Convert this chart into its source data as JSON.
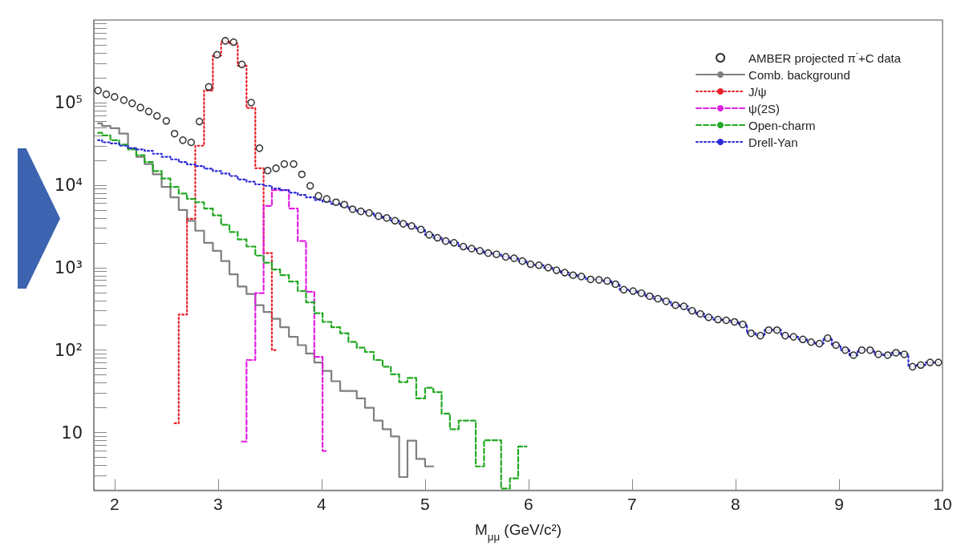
{
  "chart_data": {
    "type": "step",
    "xlabel": "M$_{μμ}$ (GeV/c²)",
    "xlim": [
      1.8,
      10
    ],
    "xticks": [
      2,
      3,
      4,
      5,
      6,
      7,
      8,
      9,
      10
    ],
    "ylim": [
      2,
      1000000
    ],
    "yticks": [
      {
        "value": 3,
        "label": null
      },
      {
        "value": 4,
        "label": null
      },
      {
        "value": 5,
        "label": null
      },
      {
        "value": 6,
        "label": null
      },
      {
        "value": 7,
        "label": null
      },
      {
        "value": 8,
        "label": null
      },
      {
        "value": 9,
        "label": null
      },
      {
        "value": 10,
        "label": "10"
      },
      {
        "value": 20,
        "label": null
      },
      {
        "value": 30,
        "label": null
      },
      {
        "value": 40,
        "label": null
      },
      {
        "value": 50,
        "label": null
      },
      {
        "value": 60,
        "label": null
      },
      {
        "value": 70,
        "label": null
      },
      {
        "value": 80,
        "label": null
      },
      {
        "value": 90,
        "label": null
      },
      {
        "value": 100,
        "label": "10²"
      },
      {
        "value": 200,
        "label": null
      },
      {
        "value": 300,
        "label": null
      },
      {
        "value": 400,
        "label": null
      },
      {
        "value": 500,
        "label": null
      },
      {
        "value": 600,
        "label": null
      },
      {
        "value": 700,
        "label": null
      },
      {
        "value": 800,
        "label": null
      },
      {
        "value": 900,
        "label": null
      },
      {
        "value": 1000,
        "label": "10³"
      },
      {
        "value": 2000,
        "label": null
      },
      {
        "value": 3000,
        "label": null
      },
      {
        "value": 4000,
        "label": null
      },
      {
        "value": 5000,
        "label": null
      },
      {
        "value": 6000,
        "label": null
      },
      {
        "value": 7000,
        "label": null
      },
      {
        "value": 8000,
        "label": null
      },
      {
        "value": 9000,
        "label": null
      },
      {
        "value": 10000,
        "label": "10⁴"
      },
      {
        "value": 20000,
        "label": null
      },
      {
        "value": 30000,
        "label": null
      },
      {
        "value": 40000,
        "label": null
      },
      {
        "value": 50000,
        "label": null
      },
      {
        "value": 60000,
        "label": null
      },
      {
        "value": 70000,
        "label": null
      },
      {
        "value": 80000,
        "label": null
      },
      {
        "value": 90000,
        "label": null
      },
      {
        "value": 100000,
        "label": "10⁵"
      },
      {
        "value": 200000,
        "label": null
      },
      {
        "value": 300000,
        "label": null
      },
      {
        "value": 400000,
        "label": null
      },
      {
        "value": 500000,
        "label": null
      },
      {
        "value": 600000,
        "label": null
      },
      {
        "value": 700000,
        "label": null
      },
      {
        "value": 800000,
        "label": null
      },
      {
        "value": 900000,
        "label": null
      }
    ],
    "log": "y",
    "grid": false,
    "legend": "top right",
    "x": [
      1.84,
      1.92,
      2.0,
      2.09,
      2.17,
      2.25,
      2.33,
      2.41,
      2.5,
      2.58,
      2.66,
      2.74,
      2.82,
      2.91,
      2.99,
      3.07,
      3.15,
      3.23,
      3.32,
      3.4,
      3.48,
      3.56,
      3.64,
      3.73,
      3.81,
      3.89,
      3.97,
      4.05,
      4.14,
      4.22,
      4.3,
      4.38,
      4.46,
      4.55,
      4.63,
      4.71,
      4.79,
      4.87,
      4.96,
      5.04,
      5.12,
      5.2,
      5.28,
      5.37,
      5.45,
      5.53,
      5.61,
      5.69,
      5.78,
      5.86,
      5.94,
      6.02,
      6.1,
      6.19,
      6.27,
      6.35,
      6.43,
      6.51,
      6.6,
      6.68,
      6.76,
      6.84,
      6.92,
      7.01,
      7.09,
      7.17,
      7.25,
      7.33,
      7.42,
      7.5,
      7.58,
      7.66,
      7.74,
      7.83,
      7.91,
      7.99,
      8.07,
      8.15,
      8.24,
      8.32,
      8.4,
      8.48,
      8.56,
      8.65,
      8.73,
      8.81,
      8.89,
      8.97,
      9.06,
      9.14,
      9.22,
      9.3,
      9.38,
      9.47,
      9.55,
      9.63,
      9.71,
      9.79,
      9.88,
      9.96
    ],
    "series": [
      {
        "name": "AMBER projected π$^{-}$+C data",
        "type": "scatter",
        "marker": "circle",
        "color": "#000000",
        "values": [
          140000,
          126000,
          117000,
          107000,
          98000,
          87000,
          78000,
          69000,
          60000,
          42000,
          35000,
          33000,
          59000,
          155000,
          380000,
          560000,
          540000,
          290000,
          100000,
          28000,
          15000,
          16000,
          18000,
          18000,
          13500,
          9800,
          7400,
          6800,
          6200,
          5800,
          5100,
          4800,
          4600,
          4200,
          4000,
          3700,
          3400,
          3200,
          2900,
          2500,
          2300,
          2100,
          2000,
          1800,
          1700,
          1600,
          1500,
          1450,
          1350,
          1300,
          1200,
          1100,
          1070,
          1000,
          930,
          870,
          810,
          780,
          720,
          710,
          690,
          630,
          540,
          520,
          490,
          450,
          420,
          390,
          350,
          340,
          300,
          275,
          250,
          235,
          230,
          220,
          205,
          160,
          150,
          175,
          175,
          150,
          145,
          135,
          125,
          120,
          140,
          115,
          100,
          87,
          100,
          100,
          89,
          87,
          93,
          89,
          63,
          66,
          71,
          71
        ]
      },
      {
        "name": "Comb. background",
        "color": "#7f7f7f",
        "line_style": "solid",
        "values": [
          56000,
          52000,
          49000,
          42000,
          28000,
          22000,
          18000,
          13500,
          9500,
          7100,
          5000,
          3700,
          2800,
          2000,
          1600,
          1200,
          830,
          590,
          480,
          350,
          290,
          240,
          190,
          145,
          115,
          91,
          71,
          56,
          42,
          32,
          32,
          26,
          20,
          14,
          11,
          9,
          2.9,
          8,
          4.8,
          3.9,
          null,
          null,
          null,
          null,
          null,
          null,
          null,
          null,
          null,
          null,
          null,
          null,
          null,
          null,
          null,
          null,
          null,
          null,
          null,
          null,
          null,
          null,
          null,
          null,
          null,
          null,
          null,
          null,
          null,
          null,
          null,
          null,
          null,
          null,
          null,
          null,
          null,
          null,
          null,
          null,
          null,
          null,
          null,
          null,
          null,
          null,
          null,
          null,
          null,
          null,
          null,
          null,
          null,
          null,
          null,
          null,
          null,
          null,
          null,
          null
        ]
      },
      {
        "name": "J/ψ",
        "color": "#e8202a",
        "line_style": "dotted",
        "x": [
          2.58,
          2.66,
          2.74,
          2.82,
          2.91,
          2.99,
          3.07,
          3.15,
          3.23,
          3.32,
          3.4,
          3.48,
          3.56
        ],
        "values": [
          13,
          270,
          3900,
          30000,
          140000,
          370000,
          550000,
          520000,
          280000,
          86000,
          16000,
          1500,
          100
        ]
      },
      {
        "name": "ψ(2S)",
        "color": "#e020e0",
        "line_style": "dashed",
        "x": [
          3.23,
          3.32,
          3.4,
          3.48,
          3.56,
          3.64,
          3.73,
          3.81,
          3.89,
          3.97,
          4.05
        ],
        "values": [
          7.8,
          76,
          490,
          5600,
          8700,
          8700,
          5200,
          2100,
          510,
          83,
          6
        ]
      },
      {
        "name": "Open-charm",
        "color": "#22a822",
        "line_style": "dashed",
        "values": [
          43000,
          40000,
          35000,
          31000,
          27000,
          23000,
          19000,
          14800,
          12000,
          9500,
          7900,
          6800,
          6200,
          5200,
          4300,
          3300,
          2700,
          2200,
          1800,
          1400,
          1150,
          950,
          810,
          680,
          520,
          380,
          280,
          220,
          190,
          160,
          126,
          107,
          95,
          76,
          63,
          51,
          41,
          46,
          26,
          35,
          31,
          17,
          11,
          14,
          14,
          3.9,
          8.1,
          8.1,
          2.1,
          2.8,
          6.8,
          null,
          null,
          null,
          null,
          null,
          null,
          null,
          null,
          null,
          null,
          null,
          null,
          null,
          null,
          null,
          null,
          null,
          null,
          null,
          null,
          null,
          null,
          null,
          null,
          null,
          null,
          null,
          null,
          null,
          null,
          null,
          null,
          null,
          null,
          null,
          null,
          null,
          null,
          null,
          null,
          null,
          null,
          null,
          null,
          null,
          null,
          null,
          null,
          null
        ]
      },
      {
        "name": "Drell-Yan",
        "color": "#2a2ad8",
        "line_style": "dotted",
        "values": [
          35000,
          33000,
          32000,
          30000,
          28000,
          27000,
          26000,
          24000,
          22000,
          20500,
          19000,
          17800,
          17000,
          15800,
          14800,
          13800,
          12900,
          11700,
          11000,
          10200,
          9800,
          9100,
          8700,
          8100,
          7600,
          7100,
          6600,
          6300,
          5900,
          5600,
          5100,
          4800,
          4600,
          4200,
          4000,
          3700,
          3400,
          3200,
          2900,
          2500,
          2300,
          2100,
          2000,
          1800,
          1700,
          1600,
          1500,
          1450,
          1350,
          1300,
          1200,
          1100,
          1070,
          1000,
          930,
          870,
          810,
          780,
          720,
          710,
          690,
          630,
          540,
          520,
          490,
          450,
          420,
          390,
          350,
          340,
          300,
          275,
          250,
          235,
          230,
          220,
          205,
          160,
          150,
          175,
          175,
          150,
          145,
          135,
          125,
          120,
          140,
          115,
          100,
          87,
          100,
          100,
          89,
          87,
          93,
          89,
          63,
          66,
          71,
          71
        ]
      }
    ]
  }
}
